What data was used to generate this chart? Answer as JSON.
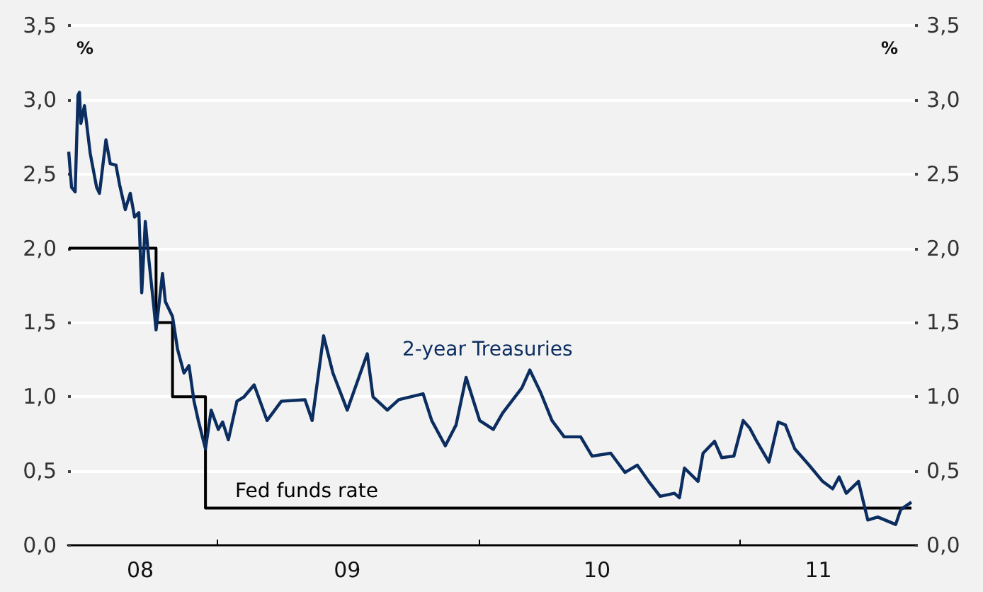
{
  "chart_data": {
    "type": "line",
    "ylabel": "%",
    "y2label": "%",
    "xlim": [
      "2008-06-06",
      "2011-09-02"
    ],
    "xticks": [
      {
        "value": "2008-09-15",
        "label": "08"
      },
      {
        "value": "2009-01-01",
        "label": null
      },
      {
        "value": "2009-07-01",
        "label": "09"
      },
      {
        "value": "2010-01-01",
        "label": null
      },
      {
        "value": "2010-06-15",
        "label": "10"
      },
      {
        "value": "2011-01-01",
        "label": null
      },
      {
        "value": "2011-04-20",
        "label": "11"
      }
    ],
    "ylim": [
      0,
      3.5
    ],
    "yticks": [
      {
        "value": 0,
        "label": "0,0"
      },
      {
        "value": 0.5,
        "label": "0,5"
      },
      {
        "value": 1,
        "label": "1,0"
      },
      {
        "value": 1.5,
        "label": "1,5"
      },
      {
        "value": 2,
        "label": "2,0"
      },
      {
        "value": 2.5,
        "label": "2,5"
      },
      {
        "value": 3,
        "label": "3,0"
      },
      {
        "value": 3.5,
        "label": "3,5"
      }
    ],
    "y2lim": [
      0,
      3.5
    ],
    "y2ticks": [
      {
        "value": 0,
        "label": "0,0"
      },
      {
        "value": 0.5,
        "label": "0,5"
      },
      {
        "value": 1,
        "label": "1,0"
      },
      {
        "value": 1.5,
        "label": "1,5"
      },
      {
        "value": 2,
        "label": "2,0"
      },
      {
        "value": 2.5,
        "label": "2,5"
      },
      {
        "value": 3,
        "label": "3,0"
      },
      {
        "value": 3.5,
        "label": "3,5"
      }
    ],
    "grid": "y",
    "legend": false,
    "marker": "none",
    "series": [
      {
        "name": "2-year Treasuries",
        "color": "#0b2d5f",
        "x": [
          "2008-06-07",
          "2008-06-11",
          "2008-06-16",
          "2008-06-20",
          "2008-06-22",
          "2008-06-24",
          "2008-06-29",
          "2008-07-07",
          "2008-07-16",
          "2008-07-20",
          "2008-07-29",
          "2008-08-04",
          "2008-08-12",
          "2008-08-17",
          "2008-08-25",
          "2008-09-01",
          "2008-09-07",
          "2008-09-13",
          "2008-09-17",
          "2008-09-22",
          "2008-09-27",
          "2008-10-04",
          "2008-10-07",
          "2008-10-16",
          "2008-10-20",
          "2008-10-30",
          "2008-11-06",
          "2008-11-15",
          "2008-11-22",
          "2008-11-29",
          "2008-12-05",
          "2008-12-15",
          "2008-12-23",
          "2009-01-02",
          "2009-01-08",
          "2009-01-16",
          "2009-01-28",
          "2009-02-07",
          "2009-02-21",
          "2009-03-11",
          "2009-03-31",
          "2009-05-03",
          "2009-05-13",
          "2009-05-29",
          "2009-06-11",
          "2009-07-01",
          "2009-07-29",
          "2009-08-06",
          "2009-08-26",
          "2009-09-11",
          "2009-10-15",
          "2009-10-27",
          "2009-11-15",
          "2009-11-30",
          "2009-12-14",
          "2010-01-02",
          "2010-01-21",
          "2010-02-03",
          "2010-03-02",
          "2010-03-13",
          "2010-03-28",
          "2010-04-13",
          "2010-04-30",
          "2010-05-23",
          "2010-06-08",
          "2010-07-04",
          "2010-07-24",
          "2010-08-10",
          "2010-08-26",
          "2010-09-11",
          "2010-10-01",
          "2010-10-08",
          "2010-10-15",
          "2010-11-03",
          "2010-11-10",
          "2010-11-26",
          "2010-12-06",
          "2010-12-23",
          "2011-01-05",
          "2011-01-14",
          "2011-01-24",
          "2011-02-10",
          "2011-02-23",
          "2011-03-05",
          "2011-03-18",
          "2011-04-07",
          "2011-04-26",
          "2011-05-10",
          "2011-05-19",
          "2011-05-29",
          "2011-06-15",
          "2011-06-28",
          "2011-07-12",
          "2011-08-06",
          "2011-08-13",
          "2011-08-28"
        ],
        "values": [
          2.65,
          2.41,
          2.38,
          3.03,
          3.05,
          2.84,
          2.96,
          2.64,
          2.41,
          2.37,
          2.73,
          2.57,
          2.56,
          2.43,
          2.26,
          2.37,
          2.21,
          2.24,
          1.7,
          2.18,
          1.92,
          1.6,
          1.45,
          1.83,
          1.64,
          1.54,
          1.32,
          1.16,
          1.21,
          0.97,
          0.84,
          0.65,
          0.91,
          0.78,
          0.83,
          0.71,
          0.97,
          1.0,
          1.08,
          0.84,
          0.97,
          0.98,
          0.84,
          1.41,
          1.16,
          0.91,
          1.29,
          1.0,
          0.91,
          0.98,
          1.02,
          0.84,
          0.67,
          0.81,
          1.13,
          0.84,
          0.78,
          0.89,
          1.06,
          1.18,
          1.03,
          0.84,
          0.73,
          0.73,
          0.6,
          0.62,
          0.49,
          0.54,
          0.43,
          0.33,
          0.35,
          0.32,
          0.52,
          0.43,
          0.62,
          0.7,
          0.59,
          0.6,
          0.84,
          0.79,
          0.7,
          0.56,
          0.83,
          0.81,
          0.65,
          0.54,
          0.43,
          0.38,
          0.46,
          0.35,
          0.43,
          0.17,
          0.19,
          0.14,
          0.24,
          0.29
        ]
      },
      {
        "name": "Fed funds rate",
        "type": "step",
        "color": "#000000",
        "x": [
          "2008-06-07",
          "2008-10-07",
          "2008-10-30",
          "2008-12-15",
          "2011-08-28"
        ],
        "values": [
          2.0,
          1.5,
          1.0,
          0.25,
          0.25
        ]
      }
    ]
  }
}
